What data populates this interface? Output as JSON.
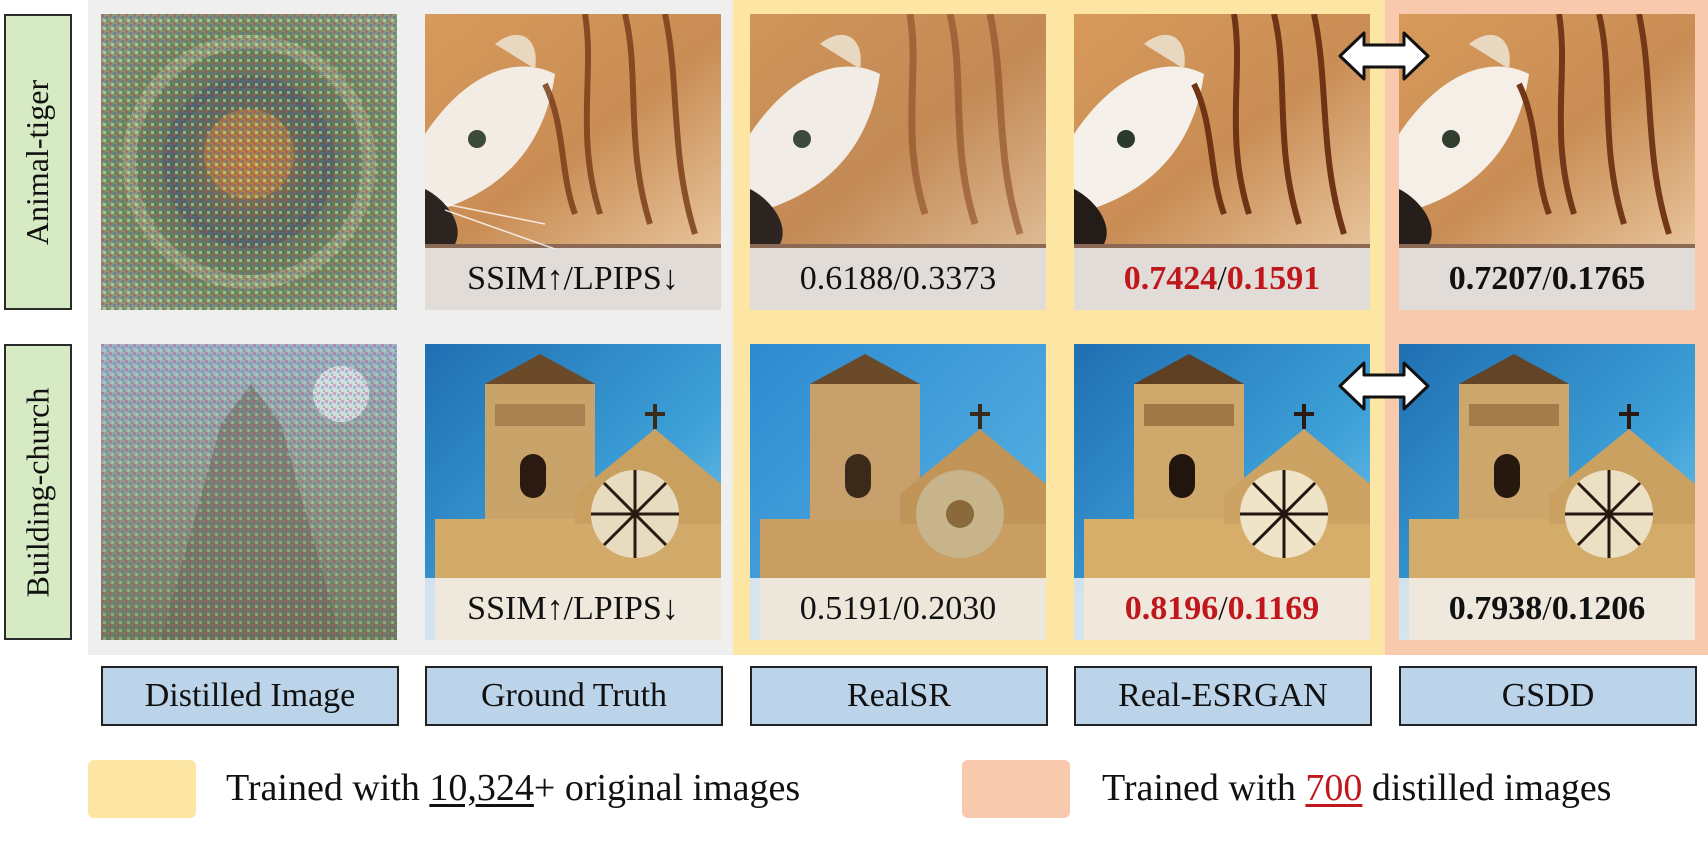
{
  "colors": {
    "distilled_bg": "#efefef",
    "original_group": "#fde6a4",
    "distilled_group": "#f9c9ae",
    "row_label_bg": "#d6ebc4",
    "method_label_bg": "#bcd4ea",
    "highlight_red": "#c0171c"
  },
  "rows": [
    {
      "label": "Animal-tiger",
      "gt_metric": "SSIM↑/LPIPS↓",
      "realsr": {
        "ssim": "0.6188",
        "lpips": "0.3373"
      },
      "realesrgan": {
        "ssim": "0.7424",
        "lpips": "0.1591"
      },
      "gsdd": {
        "ssim": "0.7207",
        "lpips": "0.1765"
      },
      "sep": "/"
    },
    {
      "label": "Building-church",
      "gt_metric": "SSIM↑/LPIPS↓",
      "realsr": {
        "ssim": "0.5191",
        "lpips": "0.2030"
      },
      "realesrgan": {
        "ssim": "0.8196",
        "lpips": "0.1169"
      },
      "gsdd": {
        "ssim": "0.7938",
        "lpips": "0.1206"
      },
      "sep": "/"
    }
  ],
  "methods": [
    "Distilled Image",
    "Ground Truth",
    "RealSR",
    "Real-ESRGAN",
    "GSDD"
  ],
  "legend": {
    "original": {
      "prefix": "Trained with ",
      "count": "10,324",
      "suffix": "+ original images"
    },
    "distilled": {
      "prefix": "Trained with ",
      "count": "700",
      "suffix": " distilled images"
    }
  },
  "icons": [
    "double-arrow-icon"
  ]
}
